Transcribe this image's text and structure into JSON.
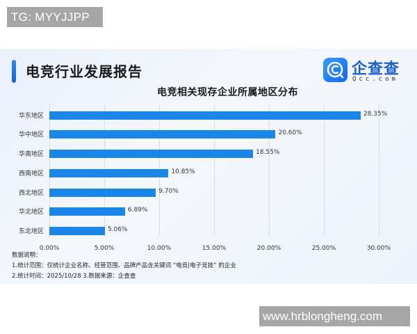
{
  "overlay": {
    "tg_label": "TG: MYYJJPP",
    "watermark": "www.hrblongheng.com"
  },
  "header": {
    "report_title": "电竞行业发展报告",
    "logo_cn": "企查查",
    "logo_en": "Qcc.com",
    "logo_icon": "qcc-magnifier-icon"
  },
  "colors": {
    "bar": "#1a86e8",
    "accent": "#1463d6",
    "background": "#eef3fb"
  },
  "chart_data": {
    "type": "bar",
    "orientation": "horizontal",
    "title": "电竞相关现存企业所属地区分布",
    "categories": [
      "华东地区",
      "华中地区",
      "华南地区",
      "西南地区",
      "西北地区",
      "华北地区",
      "东北地区"
    ],
    "values": [
      28.35,
      20.6,
      18.55,
      10.85,
      9.7,
      6.89,
      5.06
    ],
    "value_labels": [
      "28.35%",
      "20.60%",
      "18.55%",
      "10.85%",
      "9.70%",
      "6.89%",
      "5.06%"
    ],
    "xlabel": "",
    "ylabel": "",
    "xlim": [
      0,
      30
    ],
    "x_ticks": [
      "0.00%",
      "5.00%",
      "10.00%",
      "15.00%",
      "20.00%",
      "25.00%",
      "30.00%"
    ],
    "grid": "vertical",
    "legend": "none",
    "unit": "%"
  },
  "notes": {
    "heading": "数据说明：",
    "line1": "1.统计范围：仅统计企业名称、经营范围、品牌产品含关键词 “电竞|电子竞技” 的企业",
    "line2": " 2.统计时间：2025/10/28 3.数据来源：企查查"
  }
}
